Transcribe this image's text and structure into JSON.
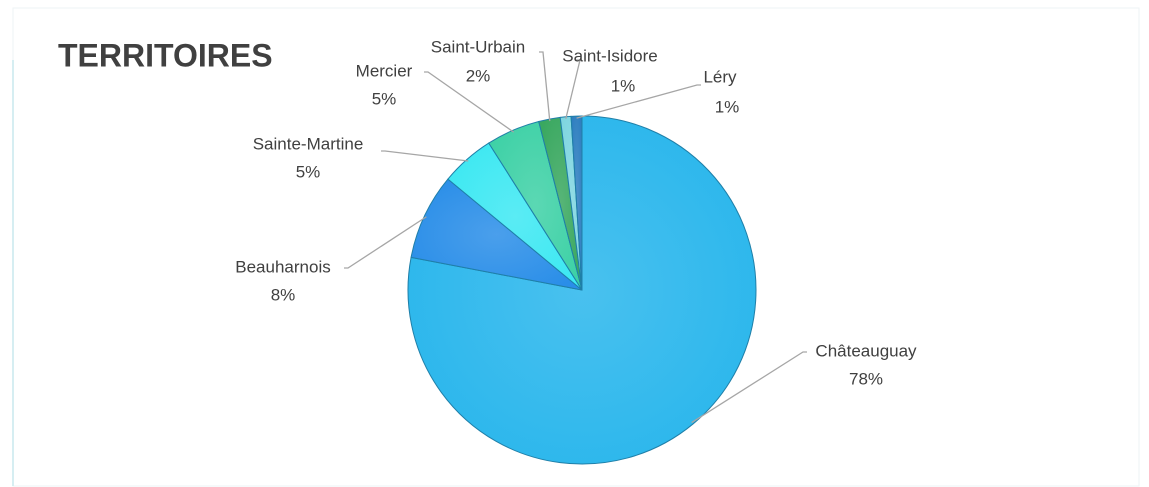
{
  "chart_data": {
    "type": "pie",
    "title": "TERRITOIRES",
    "categories": [
      "Châteauguay",
      "Beauharnois",
      "Sainte-Martine",
      "Mercier",
      "Saint-Urbain",
      "Saint-Isidore",
      "Léry"
    ],
    "values": [
      78,
      8,
      5,
      5,
      2,
      1,
      1
    ],
    "value_labels": [
      "78%",
      "8%",
      "5%",
      "5%",
      "2%",
      "1%",
      "1%"
    ],
    "colors": [
      "#29b6ec",
      "#2a8ee8",
      "#3de8f2",
      "#3ed1a6",
      "#3aa860",
      "#7fd6e0",
      "#2f7fc0"
    ]
  }
}
